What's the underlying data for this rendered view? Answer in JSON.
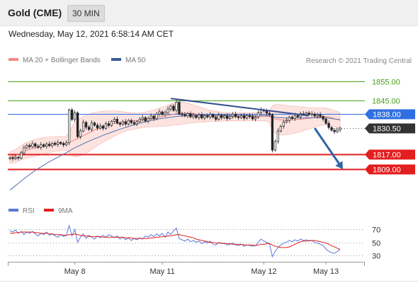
{
  "header": {
    "instrument": "Gold (CME)",
    "timeframe": "30 MIN"
  },
  "timestamp": "Wednesday, May 12, 2021 6:58:14 AM CET",
  "legend": {
    "bollinger_label": "MA 20 + Bollinger Bands",
    "bollinger_color": "#f48b84",
    "ma50_label": "MA 50",
    "ma50_color": "#3c5a9a"
  },
  "credit": "Research © 2021 Trading Central",
  "rsi_legend": {
    "rsi_label": "RSI",
    "rsi_color": "#5a78d8",
    "ma9_label": "9MA",
    "ma9_color": "#e31e1e"
  },
  "chart_data": {
    "type": "candlestick",
    "title": "",
    "xlabel": "",
    "ylabel": "",
    "x_ticks": [
      "May 8",
      "May 11",
      "May 12",
      "May 13"
    ],
    "ylim": [
      1792,
      1862
    ],
    "grid": false,
    "price_levels": [
      {
        "value": 1855.0,
        "label": "1855.00",
        "kind": "target",
        "color": "#4aa01a"
      },
      {
        "value": 1845.0,
        "label": "1845.00",
        "kind": "target",
        "color": "#4aa01a"
      },
      {
        "value": 1838.0,
        "label": "1838.00",
        "kind": "pivot",
        "color": "#2f6fe0"
      },
      {
        "value": 1830.5,
        "label": "1830.50",
        "kind": "last",
        "color": "#333333"
      },
      {
        "value": 1817.0,
        "label": "1817.00",
        "kind": "support",
        "color": "#e31e1e"
      },
      {
        "value": 1809.0,
        "label": "1809.00",
        "kind": "support",
        "color": "#e31e1e"
      }
    ],
    "closes": [
      1815.0,
      1814.5,
      1815.2,
      1814.8,
      1817.5,
      1820.2,
      1821.5,
      1820.8,
      1822.3,
      1821.0,
      1820.4,
      1821.8,
      1820.9,
      1822.1,
      1821.3,
      1822.6,
      1821.9,
      1823.0,
      1822.4,
      1821.7,
      1822.8,
      1840.0,
      1835.0,
      1838.5,
      1826.0,
      1829.0,
      1833.5,
      1831.0,
      1829.8,
      1833.2,
      1832.0,
      1830.5,
      1831.6,
      1830.4,
      1832.8,
      1831.9,
      1834.0,
      1835.2,
      1833.1,
      1832.5,
      1833.8,
      1832.6,
      1834.5,
      1833.4,
      1832.7,
      1833.9,
      1835.1,
      1836.0,
      1834.2,
      1835.5,
      1836.8,
      1835.4,
      1837.9,
      1839.0,
      1837.6,
      1838.7,
      1840.5,
      1842.0,
      1839.8,
      1844.0,
      1838.0,
      1837.5,
      1836.9,
      1838.1,
      1836.4,
      1837.2,
      1836.0,
      1837.4,
      1835.8,
      1837.0,
      1836.3,
      1837.6,
      1836.2,
      1835.1,
      1837.3,
      1836.0,
      1836.9,
      1835.5,
      1836.7,
      1837.8,
      1836.5,
      1836.0,
      1837.0,
      1835.7,
      1837.1,
      1836.6,
      1835.3,
      1836.2,
      1838.6,
      1840.0,
      1839.5,
      1838.3,
      1837.5,
      1819.0,
      1823.5,
      1829.0,
      1831.4,
      1833.7,
      1834.5,
      1836.2,
      1835.5,
      1837.1,
      1836.4,
      1838.0,
      1837.6,
      1838.4,
      1837.7,
      1837.9,
      1836.8,
      1837.5,
      1836.6,
      1835.2,
      1833.0,
      1830.8,
      1829.4,
      1828.6,
      1829.5,
      1830.5
    ],
    "ma20": [
      1815.0,
      1815.4,
      1816.0,
      1816.8,
      1817.6,
      1818.4,
      1818.9,
      1819.4,
      1819.8,
      1820.2,
      1820.5,
      1820.9,
      1821.2,
      1821.5,
      1821.7,
      1822.0,
      1822.1,
      1822.3,
      1822.4,
      1822.5,
      1822.6,
      1823.0,
      1823.6,
      1824.4,
      1825.1,
      1825.8,
      1826.5,
      1827.3,
      1828.0,
      1828.8,
      1829.5,
      1830.1,
      1830.7,
      1831.2,
      1831.7,
      1832.1,
      1832.5,
      1832.9,
      1833.2,
      1833.5,
      1833.7,
      1833.9,
      1834.0,
      1834.1,
      1834.2,
      1834.3,
      1834.5,
      1834.7,
      1834.9,
      1835.2,
      1835.4,
      1835.6,
      1835.9,
      1836.2,
      1836.5,
      1836.8,
      1837.1,
      1837.5,
      1837.8,
      1838.1,
      1838.2,
      1838.3,
      1838.3,
      1838.2,
      1838.1,
      1838.0,
      1837.8,
      1837.6,
      1837.4,
      1837.2,
      1837.0,
      1836.9,
      1836.8,
      1836.7,
      1836.6,
      1836.5,
      1836.5,
      1836.4,
      1836.4,
      1836.4,
      1836.4,
      1836.4,
      1836.4,
      1836.4,
      1836.4,
      1836.4,
      1836.5,
      1836.5,
      1836.5,
      1836.6,
      1836.7,
      1836.7,
      1836.5,
      1835.8,
      1835.3,
      1835.0,
      1834.8,
      1834.7,
      1834.7,
      1834.7,
      1834.8,
      1834.9,
      1835.0,
      1835.1,
      1835.3,
      1835.5,
      1835.6,
      1835.8,
      1836.0,
      1836.2,
      1836.4,
      1836.6,
      1836.6,
      1836.3,
      1835.9,
      1835.4,
      1835.0,
      1834.6
    ],
    "ma50": [
      1798.0,
      1799.2,
      1800.4,
      1801.6,
      1802.8,
      1804.0,
      1805.1,
      1806.2,
      1807.3,
      1808.3,
      1809.3,
      1810.2,
      1811.1,
      1812.0,
      1812.9,
      1813.7,
      1814.5,
      1815.3,
      1816.1,
      1816.9,
      1817.6,
      1818.5,
      1819.4,
      1820.2,
      1820.9,
      1821.6,
      1822.3,
      1823.0,
      1823.6,
      1824.3,
      1824.9,
      1825.5,
      1826.1,
      1826.7,
      1827.3,
      1827.8,
      1828.3,
      1828.9,
      1829.4,
      1829.9,
      1830.4,
      1830.8,
      1831.3,
      1831.7,
      1832.2,
      1832.6,
      1833.0,
      1833.4,
      1833.8,
      1834.1,
      1834.5,
      1834.8,
      1835.1,
      1835.4,
      1835.6,
      1835.8,
      1836.0,
      1836.2,
      1836.4,
      1836.6,
      1836.7,
      1836.8,
      1836.9,
      1837.0,
      1837.0,
      1837.1,
      1837.1,
      1837.1,
      1837.2,
      1837.2,
      1837.2,
      1837.2,
      1837.2,
      1837.2,
      1837.2,
      1837.2,
      1837.2,
      1837.2,
      1837.2,
      1837.2,
      1837.2,
      1837.2,
      1837.2,
      1837.2,
      1837.2,
      1837.1,
      1837.1,
      1837.1,
      1837.1,
      1837.1,
      1837.1,
      1837.0,
      1836.9,
      1836.5,
      1836.2,
      1836.0,
      1835.9,
      1835.8,
      1835.8,
      1835.8,
      1835.8,
      1835.8,
      1835.8,
      1835.8,
      1835.8,
      1835.9,
      1835.9,
      1835.9,
      1835.9,
      1835.9,
      1835.9,
      1835.9,
      1835.8,
      1835.7,
      1835.5,
      1835.3,
      1835.1,
      1834.9
    ],
    "bb_width": [
      3.0,
      3.2,
      3.4,
      3.6,
      3.8,
      4.0,
      4.1,
      4.2,
      4.3,
      4.4,
      4.4,
      4.4,
      4.3,
      4.2,
      4.1,
      4.0,
      3.9,
      3.8,
      3.7,
      3.6,
      3.6,
      5.5,
      7.5,
      9.0,
      9.5,
      9.8,
      10.0,
      10.0,
      9.8,
      9.5,
      9.2,
      8.8,
      8.5,
      8.1,
      7.8,
      7.4,
      7.0,
      6.6,
      6.2,
      5.8,
      5.4,
      5.0,
      4.7,
      4.4,
      4.2,
      4.0,
      3.9,
      3.9,
      4.0,
      4.1,
      4.2,
      4.4,
      4.6,
      4.8,
      5.0,
      5.2,
      5.4,
      5.6,
      5.8,
      6.0,
      6.0,
      5.8,
      5.6,
      5.3,
      5.0,
      4.7,
      4.4,
      4.1,
      3.8,
      3.5,
      3.2,
      3.0,
      2.8,
      2.6,
      2.5,
      2.4,
      2.3,
      2.2,
      2.2,
      2.1,
      2.1,
      2.1,
      2.1,
      2.1,
      2.1,
      2.1,
      2.1,
      2.2,
      2.2,
      2.3,
      2.4,
      2.5,
      3.0,
      6.5,
      7.5,
      7.8,
      7.9,
      7.8,
      7.6,
      7.4,
      7.2,
      7.0,
      6.8,
      6.5,
      6.2,
      5.9,
      5.6,
      5.3,
      5.0,
      4.8,
      4.6,
      4.5,
      4.4,
      4.3,
      4.3,
      4.2,
      4.2,
      4.1
    ],
    "trendline": {
      "from": {
        "x": 57,
        "y": 1846.0
      },
      "to": {
        "x": 106,
        "y": 1837.0
      }
    },
    "projection": {
      "from": {
        "x": 108,
        "y": 1830.5
      },
      "to": {
        "x": 118,
        "y": 1809.0
      },
      "direction": "down"
    },
    "rsi": {
      "levels": [
        70,
        50,
        30
      ],
      "ylim": [
        20,
        90
      ],
      "rsi": [
        68,
        66,
        69,
        64,
        67,
        62,
        66,
        64,
        67,
        63,
        60,
        64,
        62,
        66,
        61,
        63,
        60,
        58,
        62,
        59,
        61,
        76,
        60,
        70,
        50,
        58,
        63,
        56,
        61,
        58,
        55,
        60,
        57,
        61,
        58,
        62,
        60,
        57,
        60,
        55,
        58,
        54,
        57,
        53,
        56,
        54,
        57,
        55,
        60,
        58,
        62,
        59,
        63,
        60,
        64,
        58,
        66,
        62,
        68,
        72,
        56,
        54,
        52,
        55,
        51,
        53,
        50,
        52,
        48,
        51,
        49,
        52,
        47,
        46,
        50,
        48,
        49,
        46,
        47,
        49,
        46,
        45,
        47,
        44,
        46,
        45,
        44,
        45,
        50,
        55,
        52,
        50,
        48,
        28,
        36,
        42,
        46,
        49,
        50,
        53,
        51,
        54,
        52,
        55,
        53,
        54,
        52,
        53,
        50,
        49,
        47,
        45,
        40,
        36,
        34,
        33,
        36,
        39
      ],
      "ma9": [
        64,
        64,
        65,
        65,
        66,
        66,
        66,
        66,
        66,
        65,
        65,
        64,
        64,
        64,
        63,
        63,
        62,
        62,
        62,
        61,
        61,
        62,
        62,
        63,
        62,
        61,
        60,
        60,
        59,
        59,
        59,
        59,
        59,
        58,
        58,
        58,
        58,
        58,
        58,
        58,
        58,
        57,
        57,
        57,
        56,
        56,
        56,
        56,
        56,
        56,
        57,
        57,
        58,
        58,
        59,
        59,
        60,
        60,
        61,
        62,
        62,
        61,
        60,
        59,
        58,
        57,
        55,
        54,
        53,
        52,
        51,
        50,
        50,
        49,
        49,
        49,
        48,
        48,
        48,
        47,
        47,
        47,
        47,
        46,
        46,
        46,
        46,
        45,
        46,
        47,
        47,
        48,
        48,
        46,
        44,
        43,
        42,
        42,
        42,
        43,
        45,
        47,
        49,
        51,
        52,
        52,
        53,
        53,
        53,
        52,
        51,
        50,
        49,
        47,
        45,
        43,
        41,
        39
      ]
    }
  }
}
